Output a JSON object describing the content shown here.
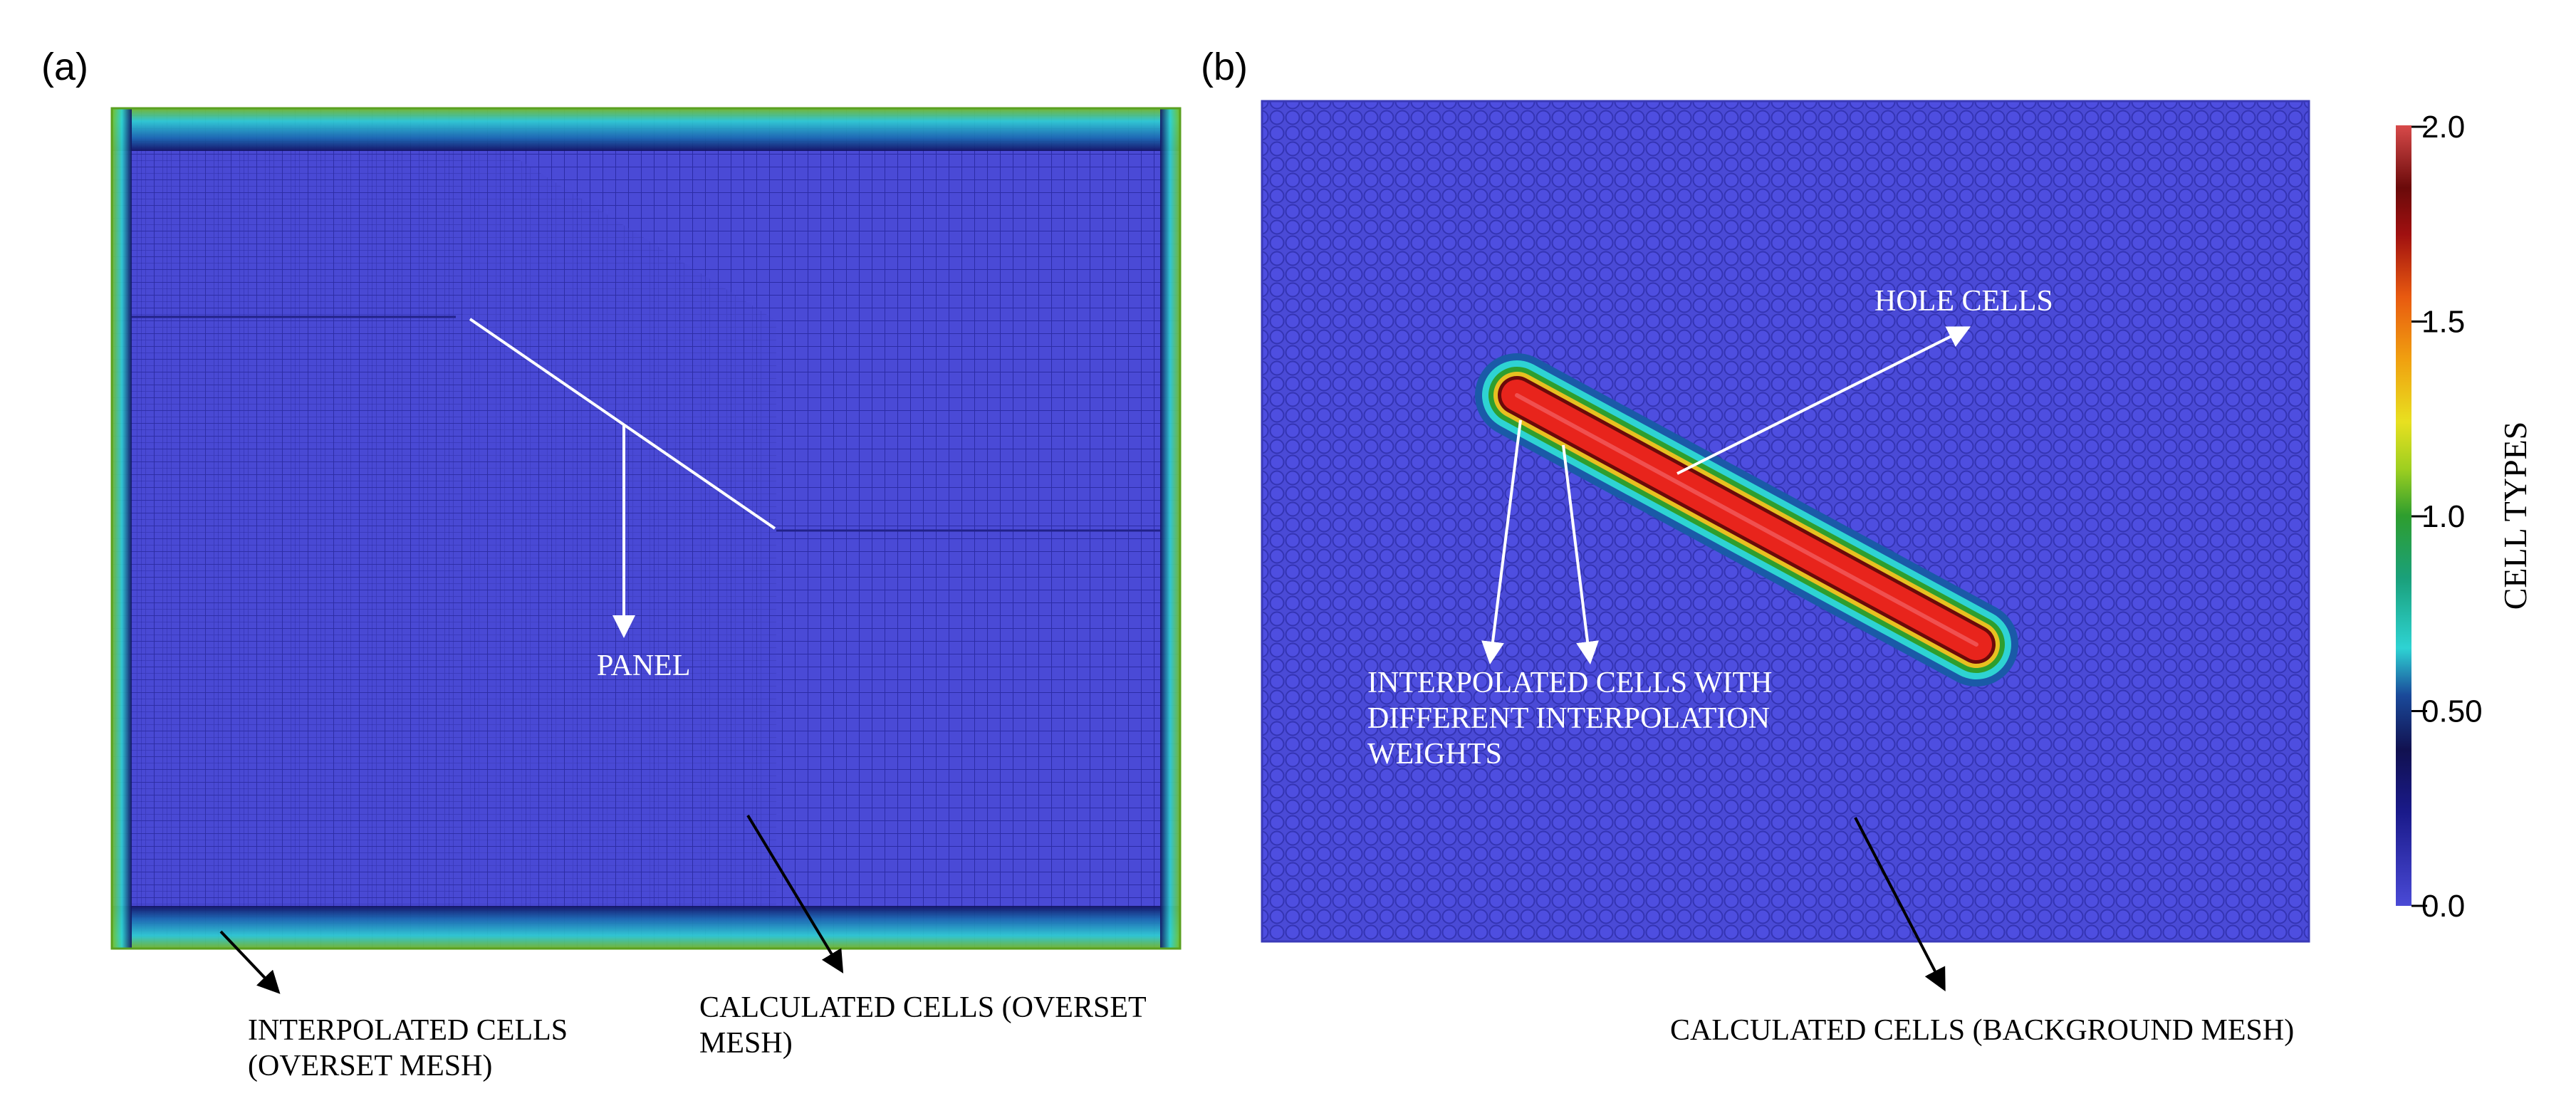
{
  "panels": {
    "a": {
      "letter": "(a)",
      "panel_label": "PANEL",
      "interpolated_line1": "INTERPOLATED CELLS",
      "interpolated_line2": "(OVERSET MESH)",
      "calculated_line1": "CALCULATED CELLS (OVERSET",
      "calculated_line2": "MESH)"
    },
    "b": {
      "letter": "(b)",
      "hole_label": "HOLE CELLS",
      "interp_line1": "INTERPOLATED CELLS WITH",
      "interp_line2": "DIFFERENT INTERPOLATION",
      "interp_line3": "WEIGHTS",
      "calculated_label": "CALCULATED CELLS (BACKGROUND MESH)"
    }
  },
  "colorbar": {
    "title": "CELL TYPES",
    "ticks": [
      "2.0",
      "1.5",
      "1.0",
      "0.50",
      "0.0"
    ],
    "tick_values": [
      2.0,
      1.5,
      1.0,
      0.5,
      0.0
    ],
    "range": [
      0.0,
      2.0
    ],
    "colors": {
      "low": "#4a4ad6",
      "dark_blue": "#111170",
      "cyan": "#2ed3d3",
      "green": "#2e9e2e",
      "yellow": "#e8e020",
      "orange": "#e85a10",
      "dark_red": "#6a0a0a",
      "high": "#d84a4a"
    }
  },
  "colors": {
    "mesh_fill": "#4a4ad6",
    "mesh_line": "#2a2aa0",
    "hole": "#e8241c",
    "arrow_white": "#ffffff",
    "arrow_black": "#000000"
  }
}
